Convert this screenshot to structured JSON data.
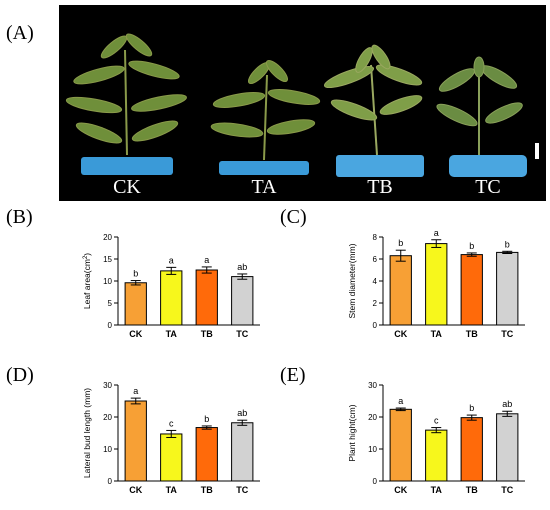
{
  "labels": {
    "A": "(A)",
    "B": "(B)",
    "C": "(C)",
    "D": "(D)",
    "E": "(E)"
  },
  "photo": {
    "captions": [
      "CK",
      "TA",
      "TB",
      "TC"
    ],
    "pot_colors": [
      "#3a9ad8",
      "#3a9ad8",
      "#4aa6e0",
      "#4aa6e0"
    ]
  },
  "chart_data": [
    {
      "id": "B",
      "type": "bar",
      "categories": [
        "CK",
        "TA",
        "TB",
        "TC"
      ],
      "values": [
        9.6,
        12.3,
        12.5,
        11.0
      ],
      "errors": [
        0.5,
        0.8,
        0.7,
        0.6
      ],
      "letters": [
        "b",
        "a",
        "a",
        "ab"
      ],
      "colors": [
        "#f7a035",
        "#f7f71c",
        "#ff6a0a",
        "#d2d2d2"
      ],
      "ylabel_prefix": "Leaf area(cm",
      "ylabel_sup": "2",
      "ylabel_suffix": ")",
      "ylim": [
        0,
        20
      ],
      "yticks": [
        0,
        5,
        10,
        15,
        20
      ]
    },
    {
      "id": "C",
      "type": "bar",
      "categories": [
        "CK",
        "TA",
        "TB",
        "TC"
      ],
      "values": [
        6.3,
        7.4,
        6.4,
        6.6
      ],
      "errors": [
        0.5,
        0.35,
        0.15,
        0.1
      ],
      "letters": [
        "b",
        "a",
        "b",
        "b"
      ],
      "colors": [
        "#f7a035",
        "#f7f71c",
        "#ff6a0a",
        "#d2d2d2"
      ],
      "ylabel": "Stem diameter(mm)",
      "ylim": [
        0,
        8
      ],
      "yticks": [
        0,
        2,
        4,
        6,
        8
      ]
    },
    {
      "id": "D",
      "type": "bar",
      "categories": [
        "CK",
        "TA",
        "TB",
        "TC"
      ],
      "values": [
        25.0,
        14.7,
        16.7,
        18.2
      ],
      "errors": [
        0.9,
        1.1,
        0.5,
        0.8
      ],
      "letters": [
        "a",
        "c",
        "b",
        "ab"
      ],
      "colors": [
        "#f7a035",
        "#f7f71c",
        "#ff6a0a",
        "#d2d2d2"
      ],
      "ylabel": "Lateral bud length (mm)",
      "ylim": [
        0,
        30
      ],
      "yticks": [
        0,
        10,
        20,
        30
      ]
    },
    {
      "id": "E",
      "type": "bar",
      "categories": [
        "CK",
        "TA",
        "TB",
        "TC"
      ],
      "values": [
        22.4,
        15.9,
        19.8,
        21.0
      ],
      "errors": [
        0.4,
        0.8,
        0.8,
        0.8
      ],
      "letters": [
        "a",
        "c",
        "b",
        "ab"
      ],
      "colors": [
        "#f7a035",
        "#f7f71c",
        "#ff6a0a",
        "#d2d2d2"
      ],
      "ylabel": "Plant hight(cm)",
      "ylim": [
        0,
        30
      ],
      "yticks": [
        0,
        10,
        20,
        30
      ]
    }
  ]
}
